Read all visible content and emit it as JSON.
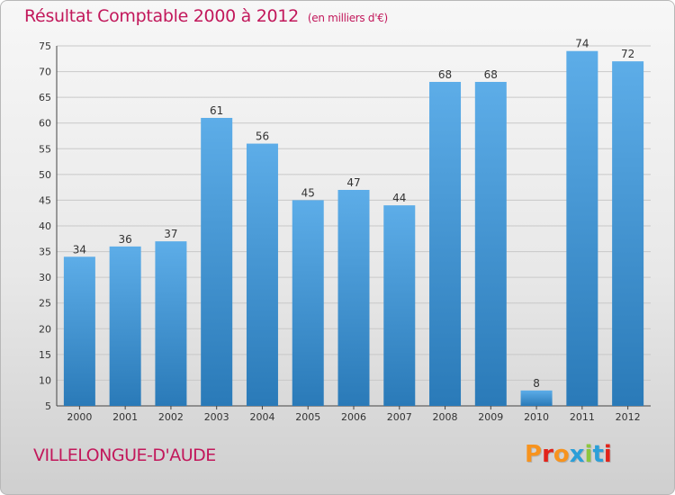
{
  "header": {
    "title": "Résultat Comptable 2000 à 2012",
    "unit": "(en milliers d'€)"
  },
  "footer": {
    "commune": "VILLELONGUE-D'AUDE",
    "logo": "Proxiti",
    "logo_colors": [
      "#f7931e",
      "#e2231a",
      "#f7931e",
      "#2b9fd8",
      "#8cc63f",
      "#2b9fd8",
      "#e2231a"
    ]
  },
  "colors": {
    "title": "#c2185b",
    "bar_top": "#5dade8",
    "bar_bottom": "#2a7ab8",
    "grid": "#c8c8c8"
  },
  "chart_data": {
    "type": "bar",
    "title": "Résultat Comptable 2000 à 2012",
    "subtitle": "(en milliers d'€)",
    "categories": [
      "2000",
      "2001",
      "2002",
      "2003",
      "2004",
      "2005",
      "2006",
      "2007",
      "2008",
      "2009",
      "2010",
      "2011",
      "2012"
    ],
    "values": [
      34,
      36,
      37,
      61,
      56,
      45,
      47,
      44,
      68,
      68,
      8,
      74,
      72
    ],
    "ylim": [
      5,
      75
    ],
    "yticks": [
      5,
      10,
      15,
      20,
      25,
      30,
      35,
      40,
      45,
      50,
      55,
      60,
      65,
      70,
      75
    ],
    "grid": true
  }
}
